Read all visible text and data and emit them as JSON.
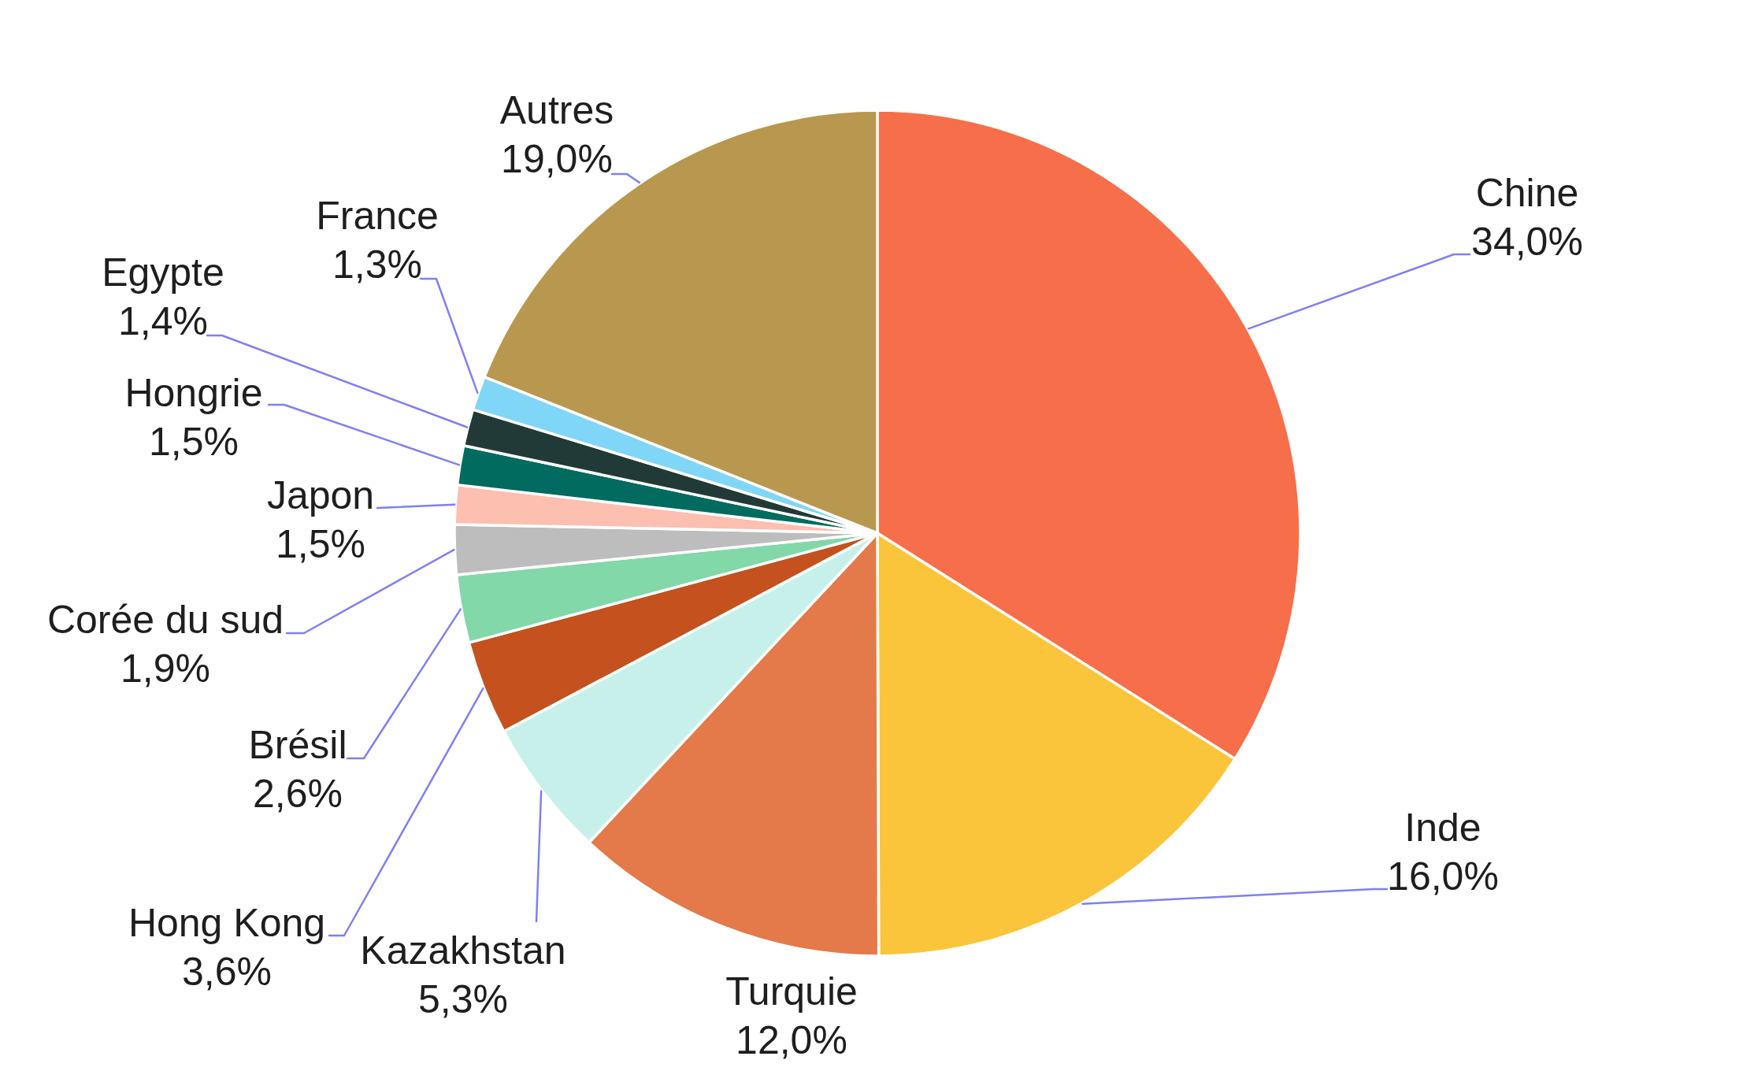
{
  "chart_data": {
    "type": "pie",
    "categories": [
      "Chine",
      "Inde",
      "Turquie",
      "Kazakhstan",
      "Hong Kong",
      "Brésil",
      "Corée du sud",
      "Japon",
      "Hongrie",
      "Egypte",
      "France",
      "Autres"
    ],
    "values": [
      34.0,
      16.0,
      12.0,
      5.3,
      3.6,
      2.6,
      1.9,
      1.5,
      1.5,
      1.4,
      1.3,
      19.0
    ],
    "value_labels": [
      "34,0%",
      "16,0%",
      "12,0%",
      "5,3%",
      "3,6%",
      "2,6%",
      "1,9%",
      "1,5%",
      "1,5%",
      "1,4%",
      "1,3%",
      "19,0%"
    ],
    "colors": [
      "#f76e4a",
      "#fac53a",
      "#e4794a",
      "#c8f0ea",
      "#c4511e",
      "#82d8a8",
      "#bdbdbd",
      "#fcbfb0",
      "#006b5e",
      "#223a37",
      "#80d6f7",
      "#b8984f"
    ]
  }
}
